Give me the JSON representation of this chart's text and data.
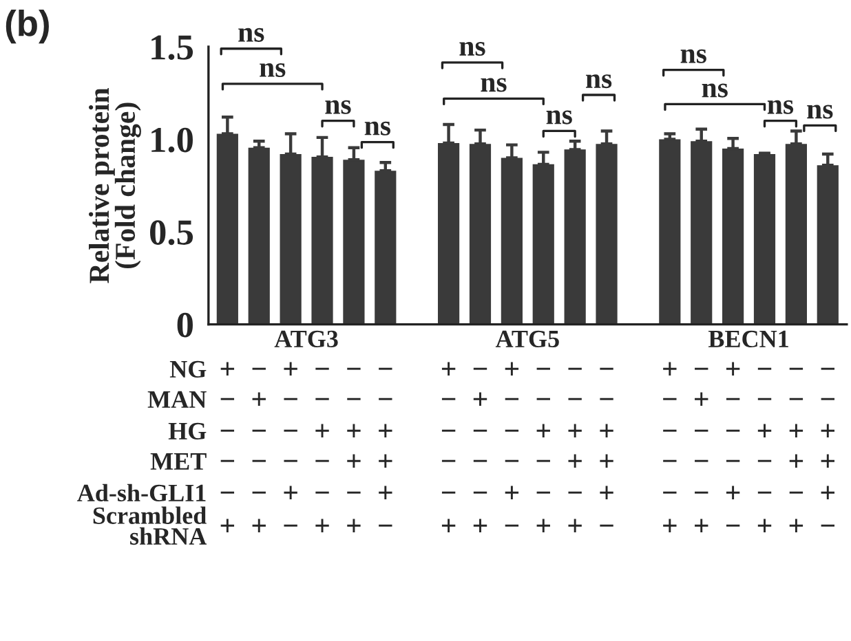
{
  "chart_data": {
    "type": "bar",
    "title": "(b)",
    "ylabel": "Relative protein\n(Fold change)",
    "categories": [
      null,
      null,
      null,
      null,
      null,
      null,
      null,
      null,
      null,
      null,
      null,
      null,
      null,
      null,
      null,
      null,
      null,
      null,
      null,
      null
    ],
    "values": [
      1.03,
      0.955,
      0.92,
      0.905,
      0.89,
      0.83,
      null,
      0.98,
      0.975,
      0.9,
      0.865,
      0.945,
      0.975,
      null,
      1.0,
      0.99,
      0.95,
      0.92,
      0.975,
      0.86
    ],
    "errors": [
      [
        1.03,
        1.12
      ],
      [
        0.955,
        0.99
      ],
      [
        0.92,
        1.03
      ],
      [
        0.905,
        1.01
      ],
      [
        0.89,
        0.955
      ],
      [
        0.83,
        0.875
      ],
      null,
      [
        0.98,
        1.08
      ],
      [
        0.975,
        1.05
      ],
      [
        0.9,
        0.97
      ],
      [
        0.865,
        0.93
      ],
      [
        0.945,
        0.99
      ],
      [
        0.975,
        1.045
      ],
      null,
      [
        1.0,
        1.03
      ],
      [
        0.99,
        1.055
      ],
      [
        0.95,
        1.005
      ],
      [
        0.92,
        0.925
      ],
      [
        0.975,
        1.045
      ],
      [
        0.86,
        0.92
      ]
    ],
    "color": "#3a3a3a",
    "ylim": [
      0,
      1.5
    ],
    "yticks": [
      0,
      {
        "value": 0.5,
        "label": "0.5"
      },
      {
        "value": 1,
        "label": "1.0"
      },
      {
        "value": 1.5,
        "label": "1.5"
      }
    ],
    "annotations": [
      "ATG3",
      "ATG5",
      "BECN1",
      "NG",
      "+−+−−−",
      "+−+−−−",
      "+−+−−−",
      "MAN",
      "−+−−−−",
      "−+−−−−",
      "−+−−−−",
      "HG",
      "−−−+++",
      "−−−+++",
      "−−−+++",
      "MET",
      "−−−−++",
      "−−−−++",
      "−−−−++",
      "Ad-sh-GLI1",
      "−−+−−+",
      "−−+−−+",
      "−−+−−+",
      "Scrambled\nshRNA",
      "++−++−",
      "++−++−",
      "++−++−",
      "ns",
      "ns",
      "ns",
      "ns",
      "ns",
      "ns",
      "ns",
      "ns",
      "ns",
      "ns",
      "ns",
      "ns"
    ]
  }
}
